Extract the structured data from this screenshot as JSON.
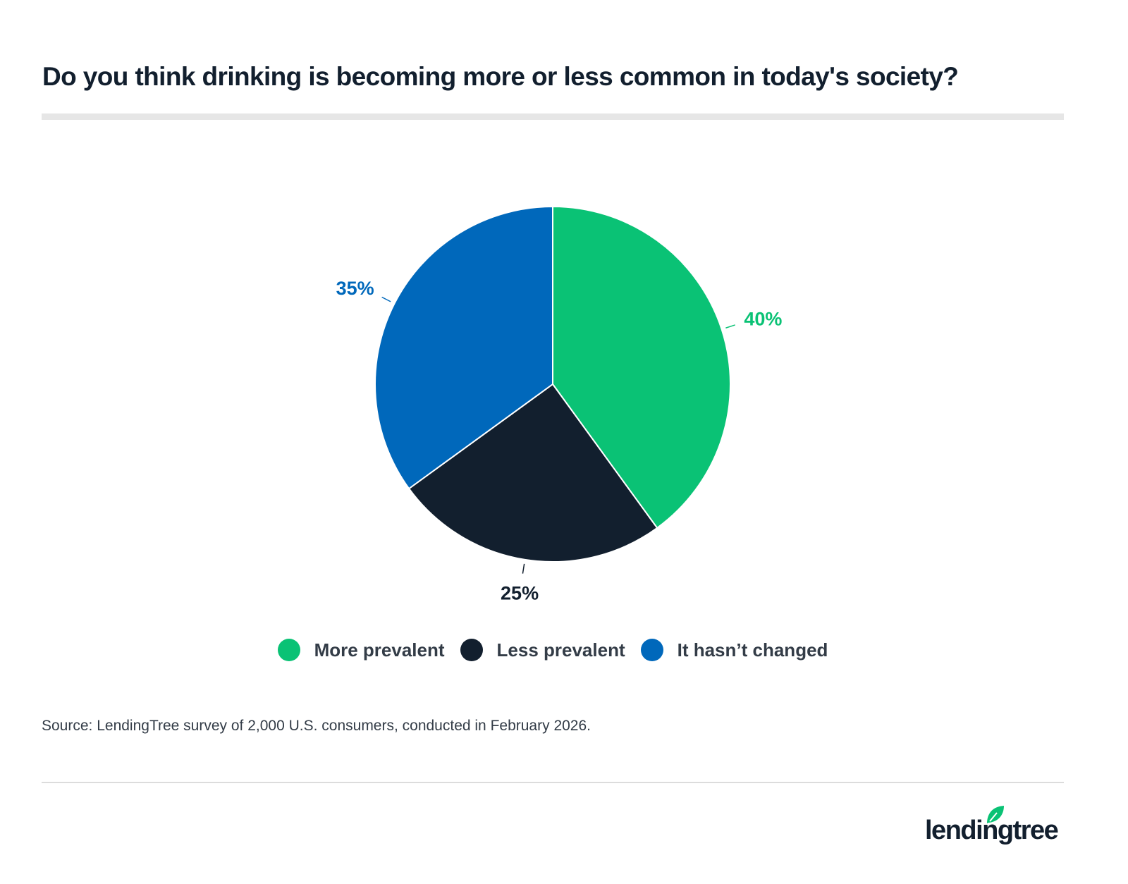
{
  "chart_data": {
    "type": "pie",
    "title": "Do you think drinking is becoming more or less common in today's society?",
    "categories": [
      "More prevalent",
      "Less prevalent",
      "It hasn’t changed"
    ],
    "values": [
      40,
      25,
      35
    ],
    "labels": [
      "40%",
      "25%",
      "35%"
    ],
    "colors": [
      "#0ac275",
      "#121f2e",
      "#0068bb"
    ],
    "legend_position": "bottom"
  },
  "source": "Source: LendingTree survey of 2,000 U.S. consumers, conducted in February 2026.",
  "logo": {
    "text": "lendingtree",
    "leaf_color": "#0ac275"
  }
}
